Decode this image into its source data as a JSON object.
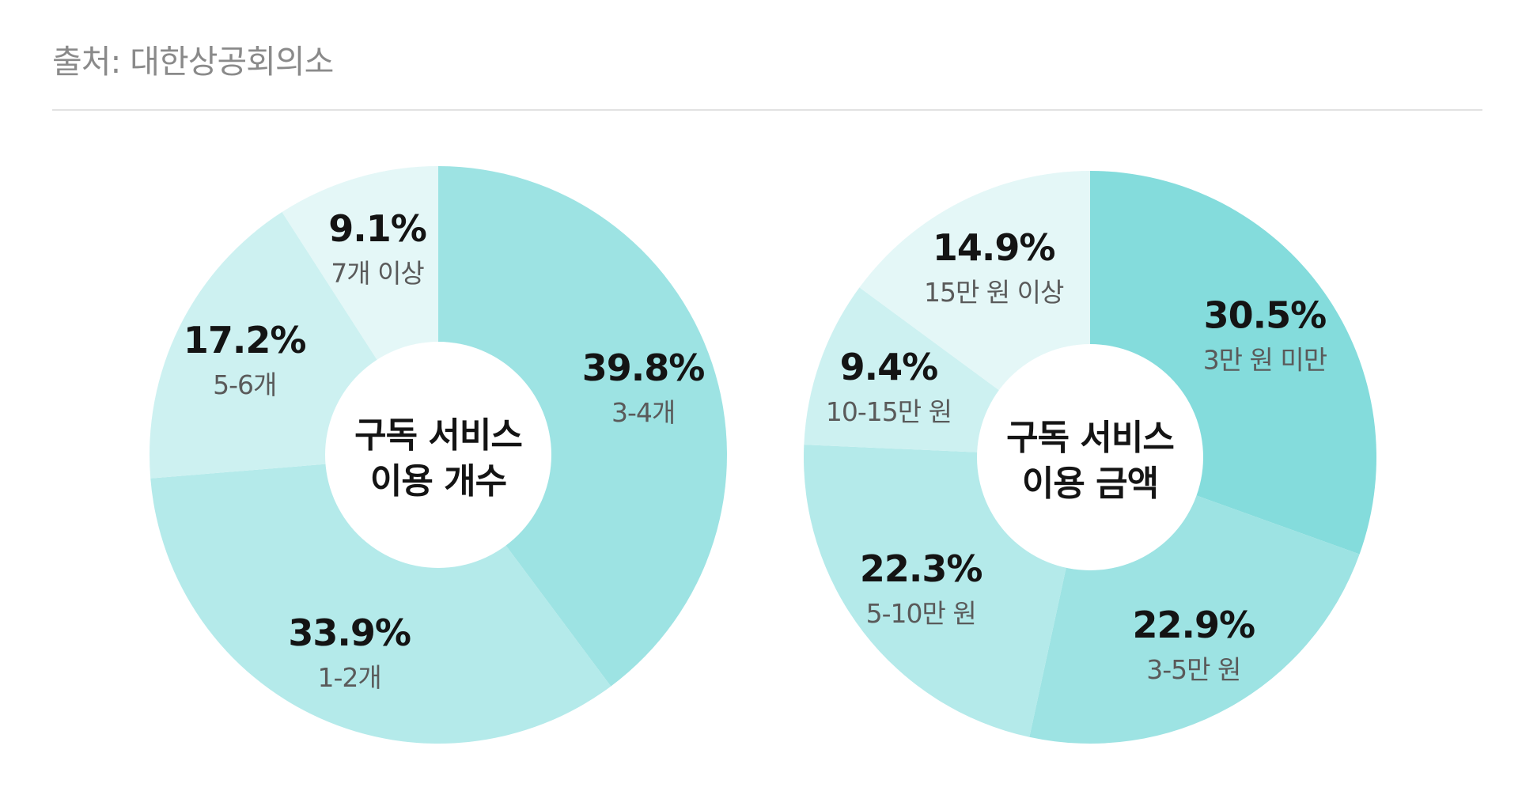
{
  "source": "출처: 대한상공회의소",
  "chart_data": [
    {
      "type": "pie",
      "title": "구독 서비스 이용 개수",
      "center_label": [
        "구독 서비스",
        "이용 개수"
      ],
      "slices": [
        {
          "label": "3-4개",
          "value": 39.8,
          "value_label": "39.8%",
          "color": "#9de3e3"
        },
        {
          "label": "1-2개",
          "value": 33.9,
          "value_label": "33.9%",
          "color": "#b4eaea"
        },
        {
          "label": "5-6개",
          "value": 17.2,
          "value_label": "17.2%",
          "color": "#cdf1f1"
        },
        {
          "label": "7개 이상",
          "value": 9.1,
          "value_label": "9.1%",
          "color": "#e4f7f7"
        }
      ]
    },
    {
      "type": "pie",
      "title": "구독 서비스 이용 금액",
      "center_label": [
        "구독 서비스",
        "이용 금액"
      ],
      "slices": [
        {
          "label": "3만 원 미만",
          "value": 30.5,
          "value_label": "30.5%",
          "color": "#84dcdc"
        },
        {
          "label": "3-5만 원",
          "value": 22.9,
          "value_label": "22.9%",
          "color": "#9de3e3"
        },
        {
          "label": "5-10만 원",
          "value": 22.3,
          "value_label": "22.3%",
          "color": "#b4eaea"
        },
        {
          "label": "10-15만 원",
          "value": 9.4,
          "value_label": "9.4%",
          "color": "#cdf1f1"
        },
        {
          "label": "15만 원 이상",
          "value": 14.9,
          "value_label": "14.9%",
          "color": "#e4f7f7"
        }
      ]
    }
  ]
}
